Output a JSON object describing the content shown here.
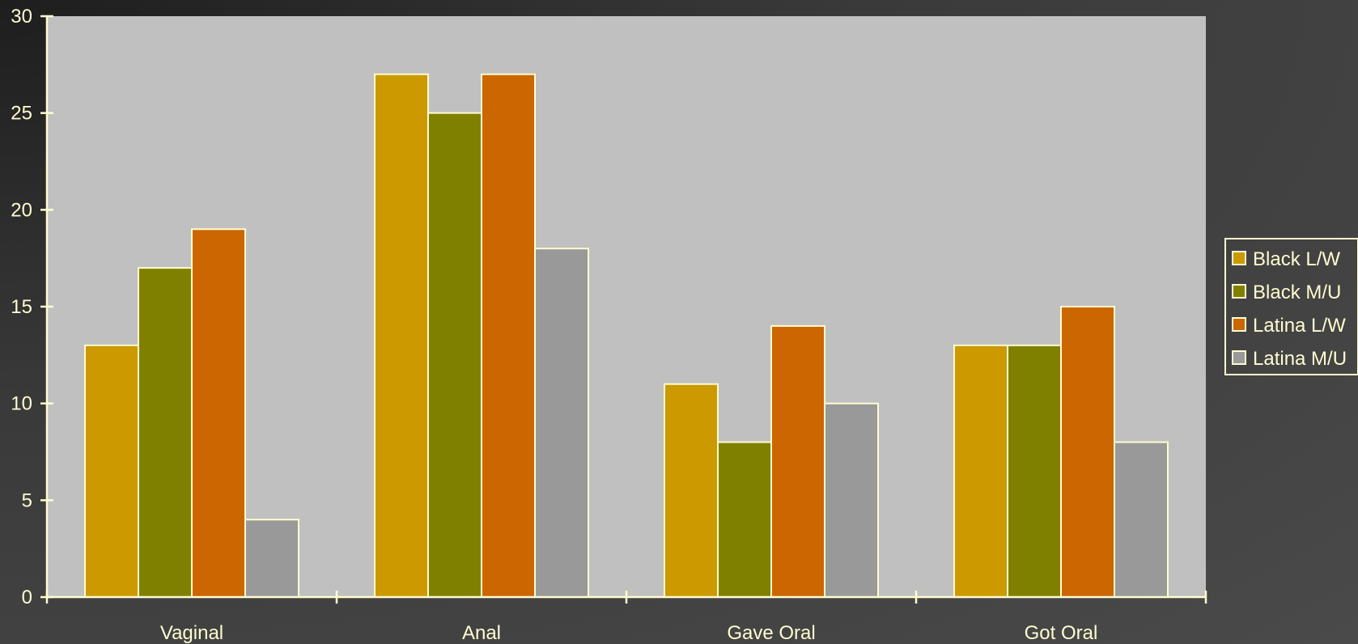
{
  "chart_data": {
    "type": "bar",
    "categories": [
      "Vaginal",
      "Anal",
      "Gave Oral",
      "Got Oral"
    ],
    "series": [
      {
        "name": "Black L/W",
        "color": "#cc9900",
        "values": [
          13,
          27,
          11,
          13
        ]
      },
      {
        "name": "Black M/U",
        "color": "#808000",
        "values": [
          17,
          25,
          8,
          13
        ]
      },
      {
        "name": "Latina L/W",
        "color": "#cc6600",
        "values": [
          19,
          27,
          14,
          15
        ]
      },
      {
        "name": "Latina M/U",
        "color": "#999999",
        "values": [
          4,
          18,
          10,
          8
        ]
      }
    ],
    "ylim": [
      0,
      30
    ],
    "yticks": [
      0,
      5,
      10,
      15,
      20,
      25,
      30
    ],
    "grid": false,
    "legend": "right",
    "colors": {
      "plot_background": "#c0c0c0",
      "axis": "#fffcd0",
      "bar_border": "#fffcd0",
      "text": "#fffcd0"
    }
  }
}
